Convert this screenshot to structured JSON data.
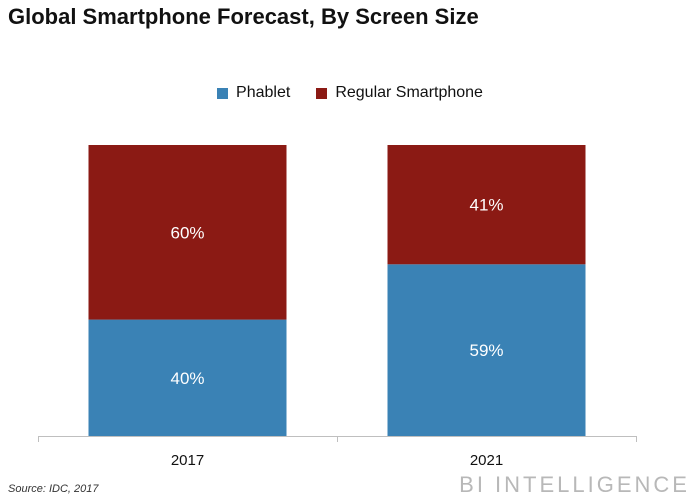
{
  "title": "Global Smartphone Forecast, By Screen Size",
  "source": "Source: IDC, 2017",
  "brand": "BI INTELLIGENCE",
  "colors": {
    "Phablet": "#3a82b5",
    "Regular Smartphone": "#8b1a14"
  },
  "chart_data": {
    "type": "bar",
    "stacked": true,
    "title": "Global Smartphone Forecast, By Screen Size",
    "xlabel": "",
    "ylabel": "",
    "ylim": [
      0,
      100
    ],
    "categories": [
      "2017",
      "2021"
    ],
    "series": [
      {
        "name": "Phablet",
        "values": [
          40,
          59
        ],
        "labels": [
          "40%",
          "59%"
        ]
      },
      {
        "name": "Regular Smartphone",
        "values": [
          60,
          41
        ],
        "labels": [
          "60%",
          "41%"
        ]
      }
    ],
    "legend": "top-center",
    "grid": false
  }
}
